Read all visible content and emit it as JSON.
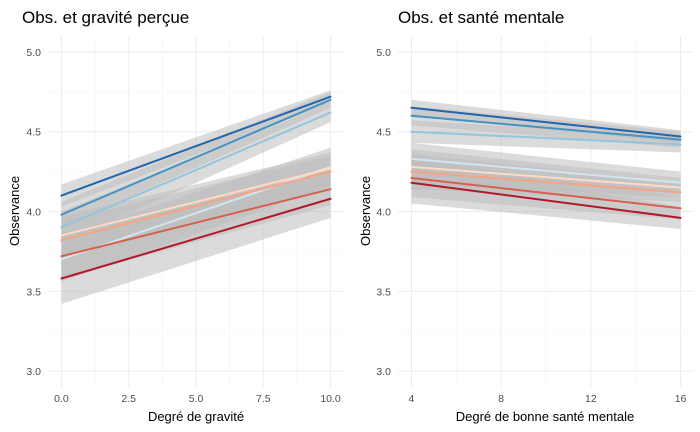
{
  "chart_data": [
    {
      "type": "line",
      "title": "Obs. et gravité perçue",
      "xlabel": "Degré de gravité",
      "ylabel": "Observance",
      "xlim": [
        -0.5,
        10.5
      ],
      "ylim": [
        2.9,
        5.1
      ],
      "xticks": [
        0,
        2.5,
        5,
        7.5,
        10
      ],
      "xtick_labels": [
        "0.0",
        "2.5",
        "5.0",
        "7.5",
        "10.0"
      ],
      "yticks": [
        3.0,
        3.5,
        4.0,
        4.5,
        5.0
      ],
      "ytick_labels": [
        "3.0",
        "3.5",
        "4.0",
        "4.5",
        "5.0"
      ],
      "grid": true,
      "series": [
        {
          "color": "#2166ac",
          "x": [
            0,
            10
          ],
          "y": [
            4.1,
            4.72
          ],
          "ci": [
            0.07,
            0.04
          ]
        },
        {
          "color": "#4393c3",
          "x": [
            0,
            10
          ],
          "y": [
            3.98,
            4.7
          ],
          "ci": [
            0.08,
            0.05
          ]
        },
        {
          "color": "#92c5de",
          "x": [
            0,
            10
          ],
          "y": [
            3.9,
            4.62
          ],
          "ci": [
            0.1,
            0.06
          ]
        },
        {
          "color": "#d1e5f0",
          "x": [
            0,
            10
          ],
          "y": [
            3.7,
            4.28
          ],
          "ci": [
            0.14,
            0.12
          ]
        },
        {
          "color": "#fddbc7",
          "x": [
            0,
            10
          ],
          "y": [
            3.85,
            4.27
          ],
          "ci": [
            0.12,
            0.1
          ]
        },
        {
          "color": "#f4a582",
          "x": [
            0,
            10
          ],
          "y": [
            3.82,
            4.25
          ],
          "ci": [
            0.12,
            0.1
          ]
        },
        {
          "color": "#d6604d",
          "x": [
            0,
            10
          ],
          "y": [
            3.72,
            4.14
          ],
          "ci": [
            0.14,
            0.1
          ]
        },
        {
          "color": "#b2182b",
          "x": [
            0,
            10
          ],
          "y": [
            3.58,
            4.08
          ],
          "ci": [
            0.16,
            0.12
          ]
        }
      ]
    },
    {
      "type": "line",
      "title": "Obs. et santé mentale",
      "xlabel": "Degré de bonne santé mentale",
      "ylabel": "Observance",
      "xlim": [
        3.4,
        16.6
      ],
      "ylim": [
        2.9,
        5.1
      ],
      "xticks": [
        4,
        8,
        12,
        16
      ],
      "xtick_labels": [
        "4",
        "8",
        "12",
        "16"
      ],
      "yticks": [
        3.0,
        3.5,
        4.0,
        4.5,
        5.0
      ],
      "ytick_labels": [
        "3.0",
        "3.5",
        "4.0",
        "4.5",
        "5.0"
      ],
      "grid": true,
      "series": [
        {
          "color": "#2166ac",
          "x": [
            4,
            16
          ],
          "y": [
            4.65,
            4.47
          ],
          "ci": [
            0.05,
            0.04
          ]
        },
        {
          "color": "#4393c3",
          "x": [
            4,
            16
          ],
          "y": [
            4.6,
            4.45
          ],
          "ci": [
            0.06,
            0.05
          ]
        },
        {
          "color": "#92c5de",
          "x": [
            4,
            16
          ],
          "y": [
            4.5,
            4.42
          ],
          "ci": [
            0.07,
            0.05
          ]
        },
        {
          "color": "#d1e5f0",
          "x": [
            4,
            16
          ],
          "y": [
            4.33,
            4.18
          ],
          "ci": [
            0.1,
            0.07
          ]
        },
        {
          "color": "#fddbc7",
          "x": [
            4,
            16
          ],
          "y": [
            4.28,
            4.15
          ],
          "ci": [
            0.11,
            0.06
          ]
        },
        {
          "color": "#f4a582",
          "x": [
            4,
            16
          ],
          "y": [
            4.25,
            4.12
          ],
          "ci": [
            0.11,
            0.06
          ]
        },
        {
          "color": "#d6604d",
          "x": [
            4,
            16
          ],
          "y": [
            4.21,
            4.02
          ],
          "ci": [
            0.12,
            0.07
          ]
        },
        {
          "color": "#b2182b",
          "x": [
            4,
            16
          ],
          "y": [
            4.18,
            3.96
          ],
          "ci": [
            0.13,
            0.07
          ]
        }
      ]
    }
  ]
}
